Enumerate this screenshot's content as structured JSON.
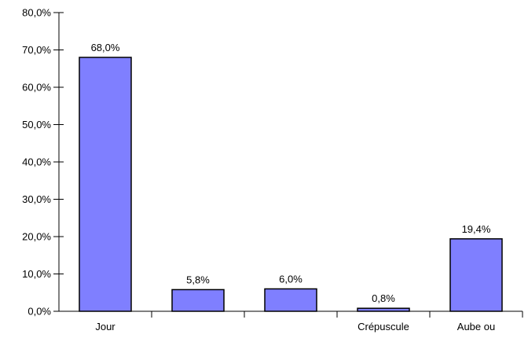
{
  "chart_data": {
    "type": "bar",
    "title": "",
    "xlabel": "",
    "ylabel": "",
    "categories": [
      "Jour",
      "",
      "",
      "Crépuscule",
      "Aube ou"
    ],
    "values": [
      68.0,
      5.8,
      6.0,
      0.8,
      19.4
    ],
    "value_labels": [
      "68,0%",
      "5,8%",
      "6,0%",
      "0,8%",
      "19,4%"
    ],
    "ylim": [
      0,
      80
    ],
    "y_ticks": [
      {
        "value": 0,
        "label": "0,0%"
      },
      {
        "value": 10,
        "label": "10,0%"
      },
      {
        "value": 20,
        "label": "20,0%"
      },
      {
        "value": 30,
        "label": "30,0%"
      },
      {
        "value": 40,
        "label": "40,0%"
      },
      {
        "value": 50,
        "label": "50,0%"
      },
      {
        "value": 60,
        "label": "60,0%"
      },
      {
        "value": 70,
        "label": "70,0%"
      },
      {
        "value": 80,
        "label": "80,0%"
      }
    ],
    "grid": false,
    "legend": "none",
    "colors": {
      "bar_fill": "#7F7FFF",
      "bar_stroke": "#000000",
      "axis": "#000000"
    }
  }
}
